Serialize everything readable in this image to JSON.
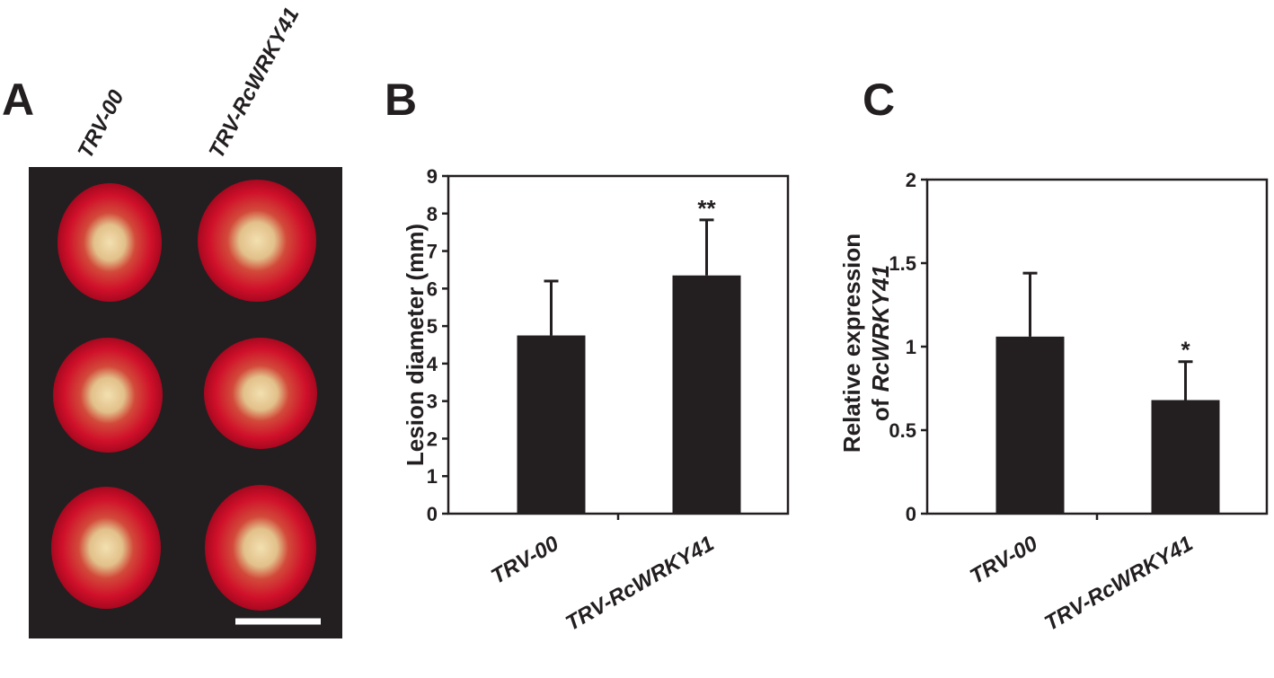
{
  "panel_a": {
    "label": "A",
    "columns": [
      "TRV-00",
      "TRV-RcWRKY41"
    ]
  },
  "chart_data": [
    {
      "type": "bar",
      "label": "B",
      "categories": [
        "TRV-00",
        "TRV-RcWRKY41"
      ],
      "values": [
        4.75,
        6.35
      ],
      "errors": [
        1.45,
        1.48
      ],
      "significance": [
        null,
        "**"
      ],
      "ylabel": "Lesion diameter (mm)",
      "ylim": [
        0,
        9
      ],
      "yticks": [
        0,
        1,
        2,
        3,
        4,
        5,
        6,
        7,
        8,
        9
      ],
      "color": "#231f20"
    },
    {
      "type": "bar",
      "label": "C",
      "categories": [
        "TRV-00",
        "TRV-RcWRKY41"
      ],
      "values": [
        1.06,
        0.68
      ],
      "errors": [
        0.38,
        0.23
      ],
      "significance": [
        null,
        "*"
      ],
      "ylabel": [
        "Relative expression",
        "of"
      ],
      "ylabel_italic": "RcWRKY41",
      "ylim": [
        0,
        2
      ],
      "yticks": [
        0,
        0.5,
        1,
        1.5,
        2
      ],
      "color": "#231f20"
    }
  ]
}
